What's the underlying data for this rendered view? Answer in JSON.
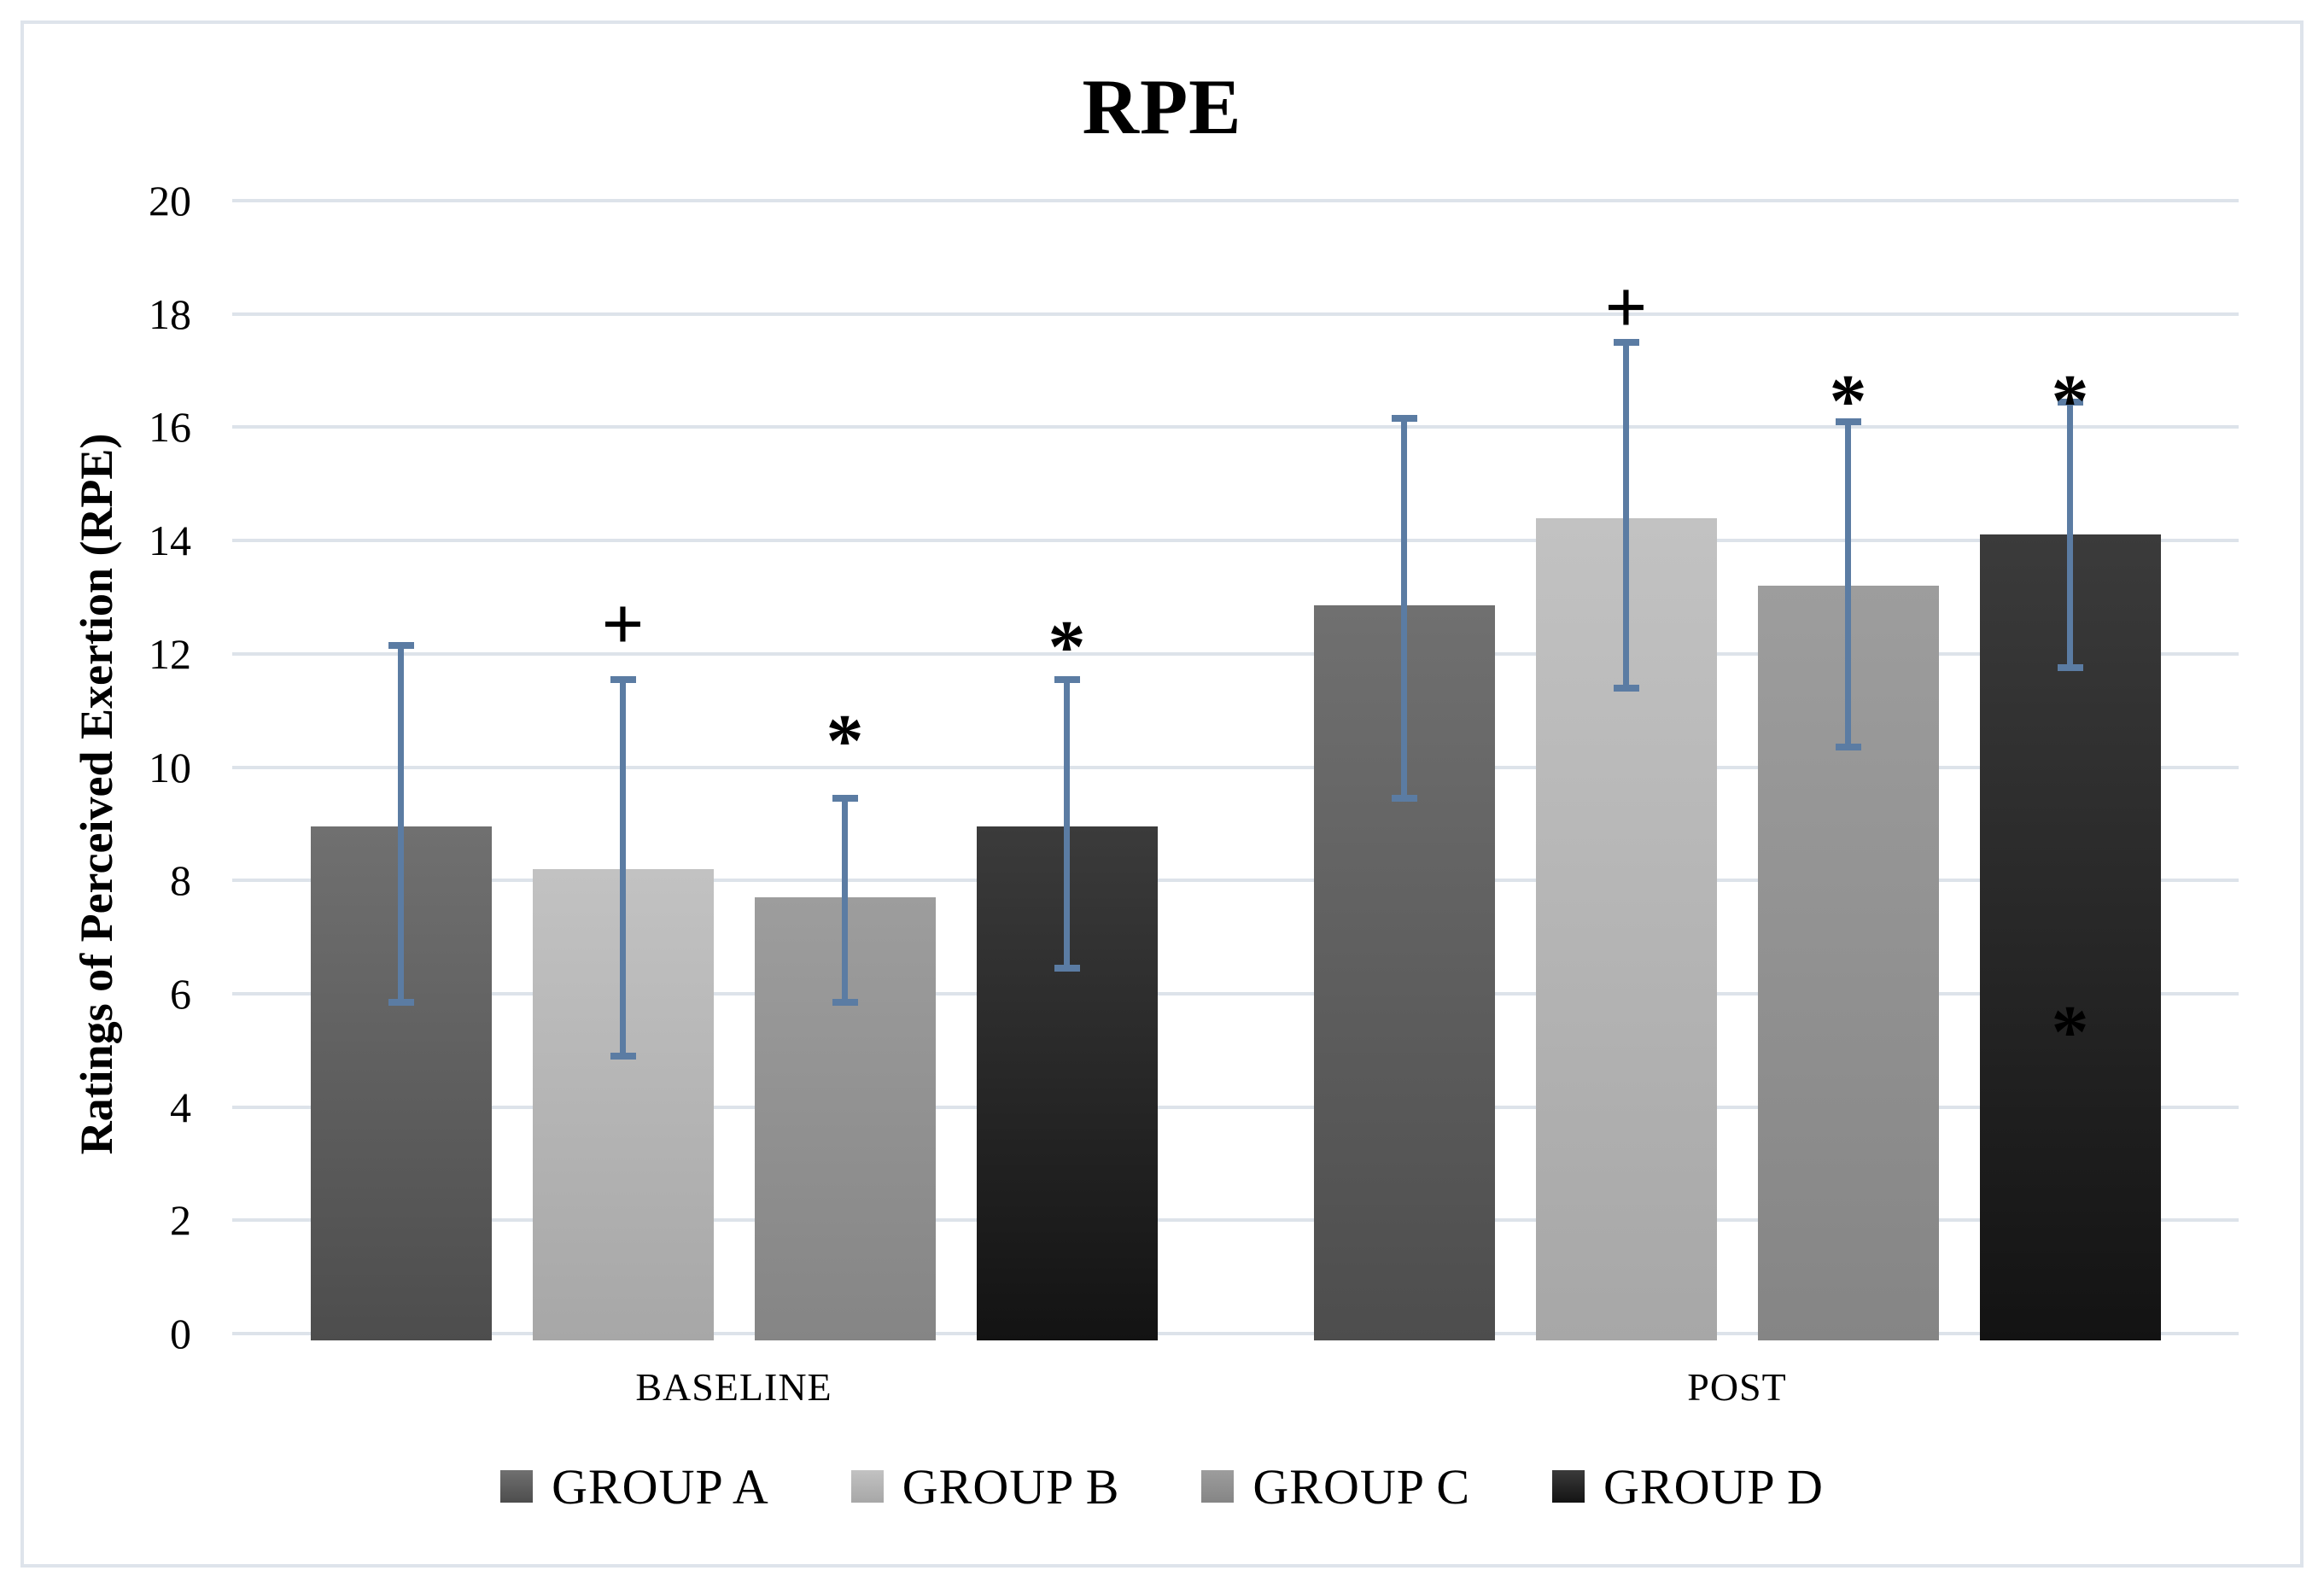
{
  "chart_data": {
    "type": "bar",
    "title": "RPE",
    "ylabel": "Ratings of Perceived Exertion (RPE)",
    "xlabel": "",
    "ylim": [
      0,
      20
    ],
    "yticks": [
      0,
      2,
      4,
      6,
      8,
      10,
      12,
      14,
      16,
      18,
      20
    ],
    "grid": true,
    "legend_position": "bottom",
    "gridline_color": "#dde3ea",
    "frame_color": "#dee4eb",
    "error_bar_color": "#5b7ca3",
    "categories": [
      "BASELINE",
      "POST"
    ],
    "series": [
      {
        "name": "GROUP A",
        "values": [
          8.95,
          12.85
        ],
        "whisker_low": [
          5.85,
          9.45
        ],
        "whisker_high": [
          12.15,
          16.15
        ],
        "color_top": "#707070",
        "color_bottom": "#4d4d4d"
      },
      {
        "name": "GROUP B",
        "values": [
          8.2,
          14.4
        ],
        "whisker_low": [
          4.9,
          11.4
        ],
        "whisker_high": [
          11.55,
          17.5
        ],
        "color_top": "#c2c2c2",
        "color_bottom": "#a7a7a7"
      },
      {
        "name": "GROUP C",
        "values": [
          7.7,
          13.2
        ],
        "whisker_low": [
          5.85,
          10.35
        ],
        "whisker_high": [
          9.45,
          16.1
        ],
        "color_top": "#9d9d9d",
        "color_bottom": "#858585"
      },
      {
        "name": "GROUP D",
        "values": [
          8.95,
          14.1
        ],
        "whisker_low": [
          6.45,
          11.75
        ],
        "whisker_high": [
          11.55,
          16.45
        ],
        "color_top": "#3b3b3b",
        "color_bottom": "#131313"
      }
    ],
    "annotations": [
      {
        "category": "BASELINE",
        "series": "GROUP B",
        "symbol": "+",
        "y": 12.6,
        "placement": "above"
      },
      {
        "category": "BASELINE",
        "series": "GROUP C",
        "symbol": "*",
        "y": 10.85,
        "placement": "above"
      },
      {
        "category": "BASELINE",
        "series": "GROUP D",
        "symbol": "*",
        "y": 12.5,
        "placement": "above"
      },
      {
        "category": "POST",
        "series": "GROUP B",
        "symbol": "+",
        "y": 18.2,
        "placement": "above"
      },
      {
        "category": "POST",
        "series": "GROUP C",
        "symbol": "*",
        "y": 16.85,
        "placement": "above"
      },
      {
        "category": "POST",
        "series": "GROUP D",
        "symbol": "*",
        "y": 16.85,
        "placement": "above"
      },
      {
        "category": "POST",
        "series": "GROUP D",
        "symbol": "*",
        "y": 5.7,
        "placement": "inside"
      }
    ]
  }
}
